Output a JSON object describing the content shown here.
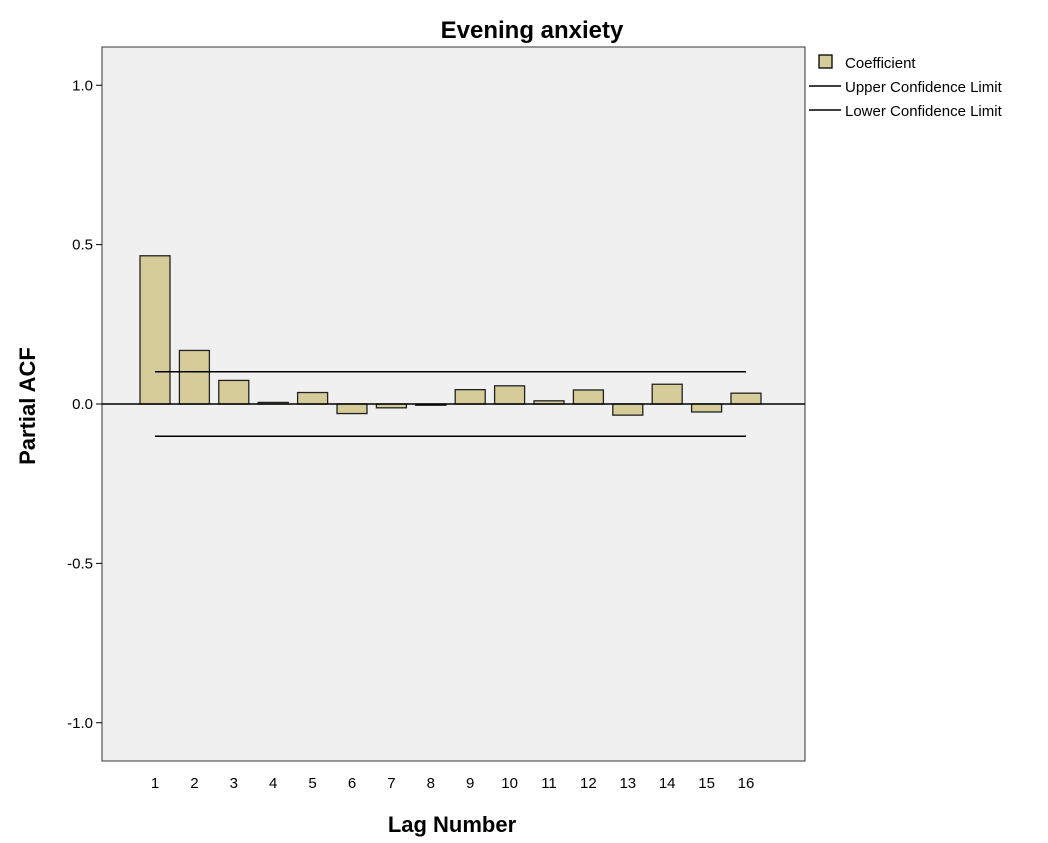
{
  "chart_data": {
    "type": "bar",
    "title": "Evening anxiety",
    "xlabel": "Lag Number",
    "ylabel": "Partial ACF",
    "categories": [
      "1",
      "2",
      "3",
      "4",
      "5",
      "6",
      "7",
      "8",
      "9",
      "10",
      "11",
      "12",
      "13",
      "14",
      "15",
      "16"
    ],
    "series": [
      {
        "name": "Coefficient",
        "values": [
          0.465,
          0.168,
          0.074,
          0.005,
          0.036,
          -0.03,
          -0.012,
          -0.004,
          0.045,
          0.057,
          0.01,
          0.044,
          -0.035,
          0.062,
          -0.025,
          0.034
        ]
      }
    ],
    "upper_confidence_limit": 0.101,
    "lower_confidence_limit": -0.101,
    "ylim": [
      -1.12,
      1.12
    ],
    "yticks": [
      1.0,
      0.5,
      0.0,
      -0.5,
      -1.0
    ],
    "ytick_labels": [
      "1.0",
      "0.5",
      "0.0",
      "-0.5",
      "-1.0"
    ],
    "grid": false,
    "legend": {
      "placement": "top-right outside",
      "entries": [
        "Coefficient",
        "Upper Confidence Limit",
        "Lower Confidence Limit"
      ]
    },
    "colors": {
      "bar_fill": "#d5cc9a",
      "bar_stroke": "#222222",
      "plot_background": "#f0f0f0",
      "line": "#000000"
    }
  }
}
